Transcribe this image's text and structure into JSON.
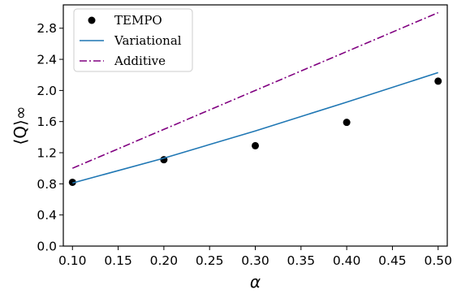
{
  "chart_data": {
    "type": "line",
    "xlabel": "α",
    "ylabel": "⟨Q⟩∞",
    "xlim": [
      0.09,
      0.51
    ],
    "ylim": [
      0.0,
      3.1
    ],
    "xticks": [
      "0.10",
      "0.15",
      "0.20",
      "0.25",
      "0.30",
      "0.35",
      "0.40",
      "0.45",
      "0.50"
    ],
    "yticks": [
      "0.0",
      "0.4",
      "0.8",
      "1.2",
      "1.6",
      "2.0",
      "2.4",
      "2.8"
    ],
    "grid": false,
    "legend_position": "top-left",
    "series": [
      {
        "name": "TEMPO",
        "kind": "scatter",
        "color": "#000000",
        "x": [
          0.1,
          0.2,
          0.3,
          0.4,
          0.5
        ],
        "y": [
          0.82,
          1.11,
          1.29,
          1.59,
          2.12
        ]
      },
      {
        "name": "Variational",
        "kind": "line",
        "style": "solid",
        "color": "#1f77b4",
        "x": [
          0.1,
          0.2,
          0.3,
          0.4,
          0.5
        ],
        "y": [
          0.81,
          1.13,
          1.48,
          1.85,
          2.23
        ]
      },
      {
        "name": "Additive",
        "kind": "line",
        "style": "dashdot",
        "color": "#800080",
        "x": [
          0.1,
          0.2,
          0.3,
          0.4,
          0.5
        ],
        "y": [
          1.0,
          1.5,
          2.0,
          2.5,
          3.0
        ]
      }
    ]
  }
}
